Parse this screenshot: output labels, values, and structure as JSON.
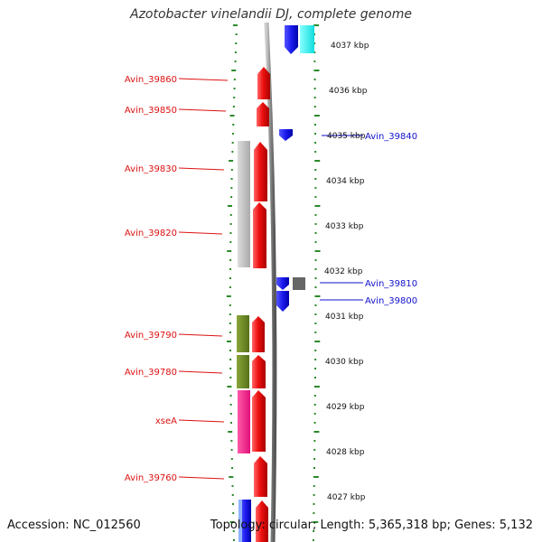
{
  "title": "Azotobacter vinelandii DJ, complete genome",
  "accession": "Accession: NC_012560",
  "topology": "Topology: circular; Length: 5,365,318 bp; Genes: 5,132",
  "scale_ticks": [
    "4037 kbp",
    "4036 kbp",
    "4035 kbp",
    "4034 kbp",
    "4033 kbp",
    "4032 kbp",
    "4031 kbp",
    "4030 kbp",
    "4029 kbp",
    "4028 kbp",
    "4027 kbp"
  ],
  "gene_labels_left": [
    "Avin_39860",
    "Avin_39850",
    "Avin_39830",
    "Avin_39820",
    "Avin_39790",
    "Avin_39780",
    "xseA",
    "Avin_39760"
  ],
  "gene_labels_right": [
    "Avin_39840",
    "Avin_39810",
    "Avin_39800"
  ],
  "colors": {
    "label_left": "#dd1111",
    "label_right": "#1111cc",
    "tick": "#2a8a2a",
    "gene_red": "#ee1111",
    "gene_blue": "#1a1aee",
    "cyan": "#22eeee",
    "grey": "#bbbbbb",
    "olive": "#6b8e23",
    "magenta": "#ff1493",
    "backbone": "#888888"
  }
}
